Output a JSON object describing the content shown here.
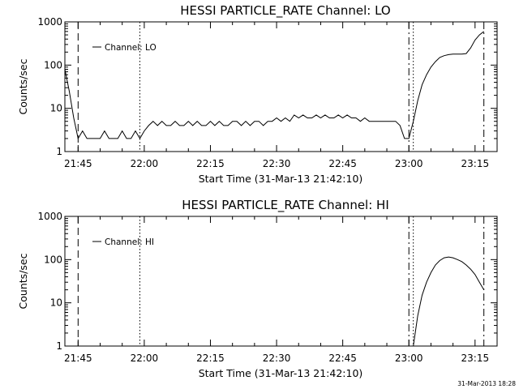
{
  "chart_data": [
    {
      "type": "line",
      "title": "HESSI PARTICLE_RATE Channel: LO",
      "xlabel": "Start Time (31-Mar-13 21:42:10)",
      "ylabel": "Counts/sec",
      "y_scale": "log",
      "ylim": [
        1,
        1000
      ],
      "xlim": [
        "21:42",
        "23:20"
      ],
      "x_ticks": [
        "21:45",
        "22:00",
        "22:15",
        "22:30",
        "22:45",
        "23:00",
        "23:15"
      ],
      "y_ticks": [
        "1",
        "10",
        "100",
        "1000"
      ],
      "legend": "top-left",
      "series": [
        {
          "name": "Channel: LO",
          "x": [
            "21:42",
            "21:43",
            "21:44",
            "21:45",
            "21:46",
            "21:47",
            "21:48",
            "21:49",
            "21:50",
            "21:51",
            "21:52",
            "21:53",
            "21:54",
            "21:55",
            "21:56",
            "21:57",
            "21:58",
            "21:59",
            "22:00",
            "22:01",
            "22:02",
            "22:03",
            "22:04",
            "22:05",
            "22:06",
            "22:07",
            "22:08",
            "22:09",
            "22:10",
            "22:11",
            "22:12",
            "22:13",
            "22:14",
            "22:15",
            "22:16",
            "22:17",
            "22:18",
            "22:19",
            "22:20",
            "22:21",
            "22:22",
            "22:23",
            "22:24",
            "22:25",
            "22:26",
            "22:27",
            "22:28",
            "22:29",
            "22:30",
            "22:31",
            "22:32",
            "22:33",
            "22:34",
            "22:35",
            "22:36",
            "22:37",
            "22:38",
            "22:39",
            "22:40",
            "22:41",
            "22:42",
            "22:43",
            "22:44",
            "22:45",
            "22:46",
            "22:47",
            "22:48",
            "22:49",
            "22:50",
            "22:51",
            "22:52",
            "22:53",
            "22:54",
            "22:55",
            "22:56",
            "22:57",
            "22:58",
            "22:59",
            "23:00",
            "23:01",
            "23:02",
            "23:03",
            "23:04",
            "23:05",
            "23:06",
            "23:07",
            "23:08",
            "23:09",
            "23:10",
            "23:11",
            "23:12",
            "23:13",
            "23:14",
            "23:15",
            "23:16",
            "23:17"
          ],
          "values": [
            80,
            25,
            6,
            2,
            3,
            2,
            2,
            2,
            2,
            3,
            2,
            2,
            2,
            3,
            2,
            2,
            3,
            2,
            3,
            4,
            5,
            4,
            5,
            4,
            4,
            5,
            4,
            4,
            5,
            4,
            5,
            4,
            4,
            5,
            4,
            5,
            4,
            4,
            5,
            5,
            4,
            5,
            4,
            5,
            5,
            4,
            5,
            5,
            6,
            5,
            6,
            5,
            7,
            6,
            7,
            6,
            6,
            7,
            6,
            7,
            6,
            6,
            7,
            6,
            7,
            6,
            6,
            5,
            6,
            5,
            5,
            5,
            5,
            5,
            5,
            5,
            4,
            2,
            2,
            5,
            15,
            35,
            60,
            90,
            120,
            150,
            165,
            175,
            180,
            180,
            180,
            185,
            250,
            380,
            500,
            600
          ]
        }
      ],
      "vlines": [
        {
          "x": "21:45",
          "style": "dashed"
        },
        {
          "x": "21:59",
          "style": "dotted"
        },
        {
          "x": "23:00",
          "style": "dash-dot"
        },
        {
          "x": "23:01",
          "style": "dotted"
        },
        {
          "x": "23:17",
          "style": "dash-dot"
        }
      ]
    },
    {
      "type": "line",
      "title": "HESSI PARTICLE_RATE Channel: HI",
      "xlabel": "Start Time (31-Mar-13 21:42:10)",
      "ylabel": "Counts/sec",
      "y_scale": "log",
      "ylim": [
        1,
        1000
      ],
      "xlim": [
        "21:42",
        "23:20"
      ],
      "x_ticks": [
        "21:45",
        "22:00",
        "22:15",
        "22:30",
        "22:45",
        "23:00",
        "23:15"
      ],
      "y_ticks": [
        "1",
        "10",
        "100",
        "1000"
      ],
      "legend": "top-left",
      "series": [
        {
          "name": "Channel: HI",
          "x": [
            "23:01",
            "23:02",
            "23:03",
            "23:04",
            "23:05",
            "23:06",
            "23:07",
            "23:08",
            "23:09",
            "23:10",
            "23:11",
            "23:12",
            "23:13",
            "23:14",
            "23:15",
            "23:16",
            "23:17"
          ],
          "values": [
            1,
            5,
            15,
            30,
            50,
            75,
            95,
            110,
            115,
            110,
            100,
            90,
            75,
            60,
            45,
            30,
            20
          ]
        }
      ],
      "vlines": [
        {
          "x": "21:45",
          "style": "dashed"
        },
        {
          "x": "21:59",
          "style": "dotted"
        },
        {
          "x": "23:00",
          "style": "dash-dot"
        },
        {
          "x": "23:01",
          "style": "dotted"
        },
        {
          "x": "23:17",
          "style": "dash-dot"
        }
      ]
    }
  ],
  "footer": {
    "timestamp": "31-Mar-2013 18:28"
  }
}
